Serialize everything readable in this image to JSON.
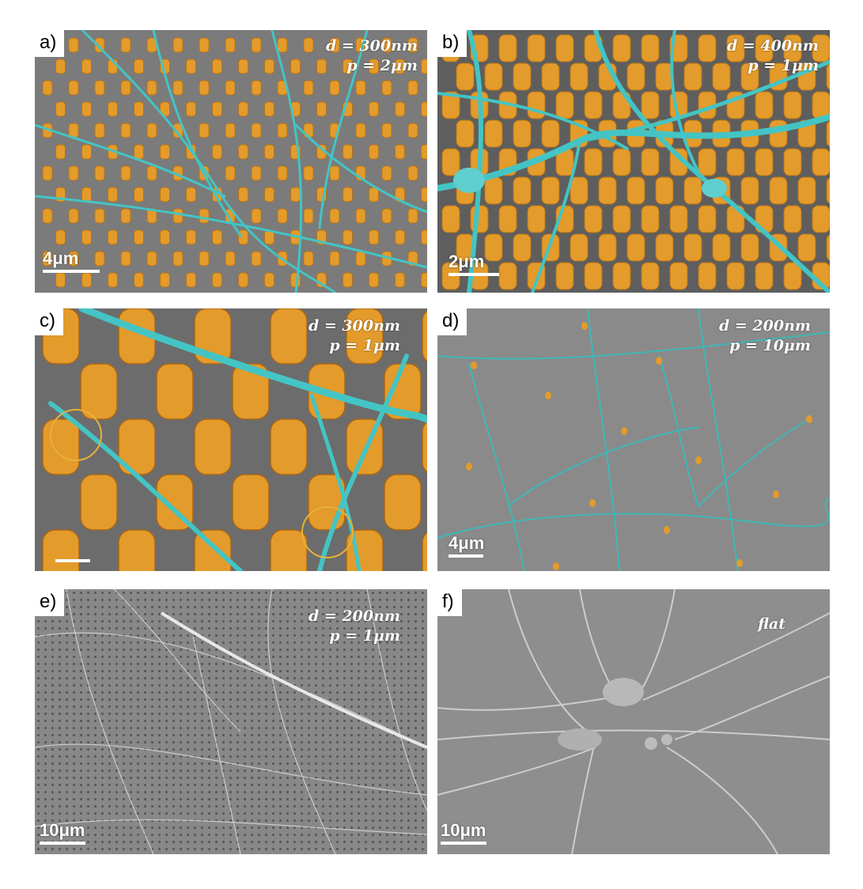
{
  "panels": [
    {
      "label": "a)",
      "param_lines": [
        "d = 300nm",
        "p = 2μm"
      ],
      "scale_label": "4μm"
    },
    {
      "label": "b)",
      "param_lines": [
        "d = 400nm",
        "p = 1μm"
      ],
      "scale_label": "2μm"
    },
    {
      "label": "c)",
      "param_lines": [
        "d = 300nm",
        "p = 1μm"
      ],
      "scale_label": ""
    },
    {
      "label": "d)",
      "param_lines": [
        "d = 200nm",
        "p = 10μm"
      ],
      "scale_label": "4μm"
    },
    {
      "label": "e)",
      "param_lines": [
        "d = 200nm",
        "p = 1μm"
      ],
      "scale_label": "10μm"
    },
    {
      "label": "f)",
      "param_lines": [
        "flat"
      ],
      "scale_label": "10μm"
    }
  ],
  "colors": {
    "substrate_gray": "#7d7d7d",
    "pillar_orange": "#e39b2b",
    "neurite_cyan": "#44c4c4",
    "highlight_circle": "#e8b13a"
  },
  "image_descriptions": {
    "a": "SEM of sparse orange nanopillar array with thin cyan neurites",
    "b": "SEM of dense tall orange nanopillars with thick cyan neurite network and cell body",
    "c": "close-up SEM of orange nanopillars with cyan neurites wrapping pillar tops, two circled contact points",
    "d": "SEM of sparse pillars with cyan neurite network on flat-looking gray substrate",
    "e": "grayscale SEM of dense pillar grid with fine neurite mesh",
    "f": "grayscale SEM of neuron cluster on flat substrate"
  }
}
